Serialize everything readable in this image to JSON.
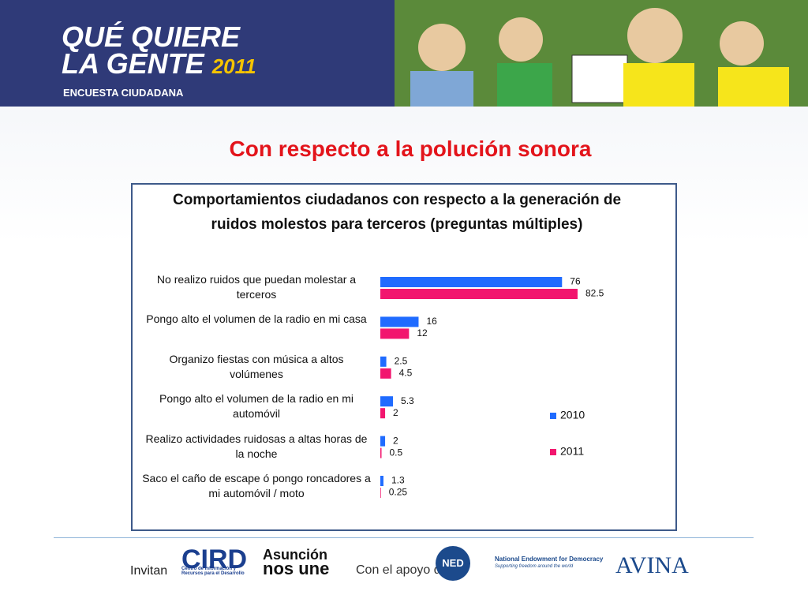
{
  "header": {
    "title_line1": "QUÉ QUIERE",
    "title_line2": "LA GENTE",
    "year": "2011",
    "subtitle": "ENCUESTA CIUDADANA"
  },
  "slide_title": "Con respecto a la polución sonora",
  "chart_data": {
    "type": "bar",
    "orientation": "horizontal",
    "title": "Comportamientos ciudadanos con respecto a la generación de ruidos molestos para terceros (preguntas múltiples)",
    "categories": [
      "No realizo ruidos que puedan molestar a terceros",
      "Pongo alto el volumen de la radio en mi casa",
      "Organizo fiestas con música a altos volúmenes",
      "Pongo alto el volumen de la radio en mi automóvil",
      "Realizo actividades ruidosas a altas horas de la noche",
      "Saco el caño de escape ó pongo roncadores a mi automóvil / moto"
    ],
    "series": [
      {
        "name": "2010",
        "color": "#1f6bff",
        "values": [
          76,
          16,
          2.5,
          5.3,
          2,
          1.3
        ]
      },
      {
        "name": "2011",
        "color": "#f2166e",
        "values": [
          82.5,
          12,
          4.5,
          2,
          0.5,
          0.25
        ]
      }
    ],
    "legend": "right"
  },
  "footer": {
    "invitan": "Invitan",
    "cird": "CIRD",
    "cird_sub": "Centro de Información y Recursos para el Desarrollo",
    "asuncion1": "Asunción",
    "asuncion2": "nos une",
    "apoyo": "Con el apoyo de",
    "ned": "NED",
    "ned_name": "National Endowment for Democracy",
    "ned_sub": "Supporting freedom around the world",
    "avina": "AVINA"
  }
}
